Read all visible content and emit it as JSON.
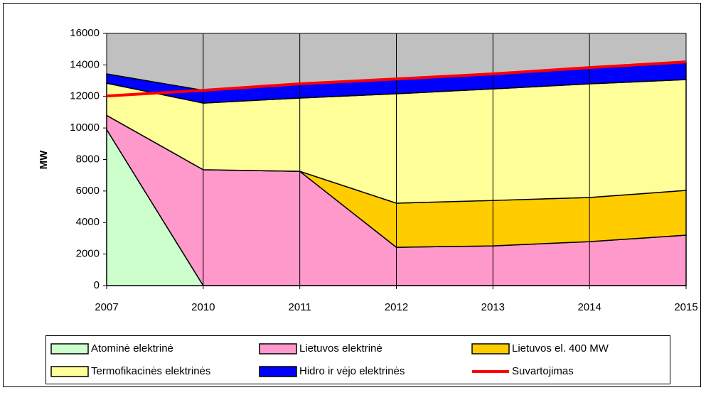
{
  "chart_data": {
    "type": "area",
    "stacked": true,
    "y_label": "MW",
    "categories": [
      "2007",
      "2010",
      "2011",
      "2012",
      "2013",
      "2014",
      "2015"
    ],
    "series": [
      {
        "name": "Atominė elektrinė",
        "color": "#ccffcc",
        "values": [
          9900,
          0,
          0,
          0,
          0,
          0,
          0
        ]
      },
      {
        "name": "Lietuvos elektrinė",
        "color": "#ff99cc",
        "values": [
          900,
          7350,
          7250,
          2430,
          2520,
          2790,
          3200
        ]
      },
      {
        "name": "Lietuvos el. 400 MW",
        "color": "#ffcc00",
        "values": [
          0,
          0,
          0,
          2800,
          2880,
          2800,
          2840
        ]
      },
      {
        "name": "Termofikacinės elektrinės",
        "color": "#ffff99",
        "values": [
          2040,
          4230,
          4650,
          6940,
          7080,
          7210,
          7030
        ]
      },
      {
        "name": "Hidro ir vėjo elektrinės",
        "color": "#0000ff",
        "values": [
          590,
          810,
          940,
          940,
          950,
          990,
          1080
        ]
      },
      {
        "name": "Suvartojimas",
        "color": "#ff0000",
        "type": "line",
        "values": [
          12030,
          12390,
          12800,
          13110,
          13430,
          13830,
          14190
        ]
      }
    ],
    "ylim": [
      0,
      16000
    ],
    "yticks": [
      0,
      2000,
      4000,
      6000,
      8000,
      10000,
      12000,
      14000,
      16000
    ],
    "grid": true,
    "plot_background": "#c0c0c0",
    "legend": "bottom"
  }
}
